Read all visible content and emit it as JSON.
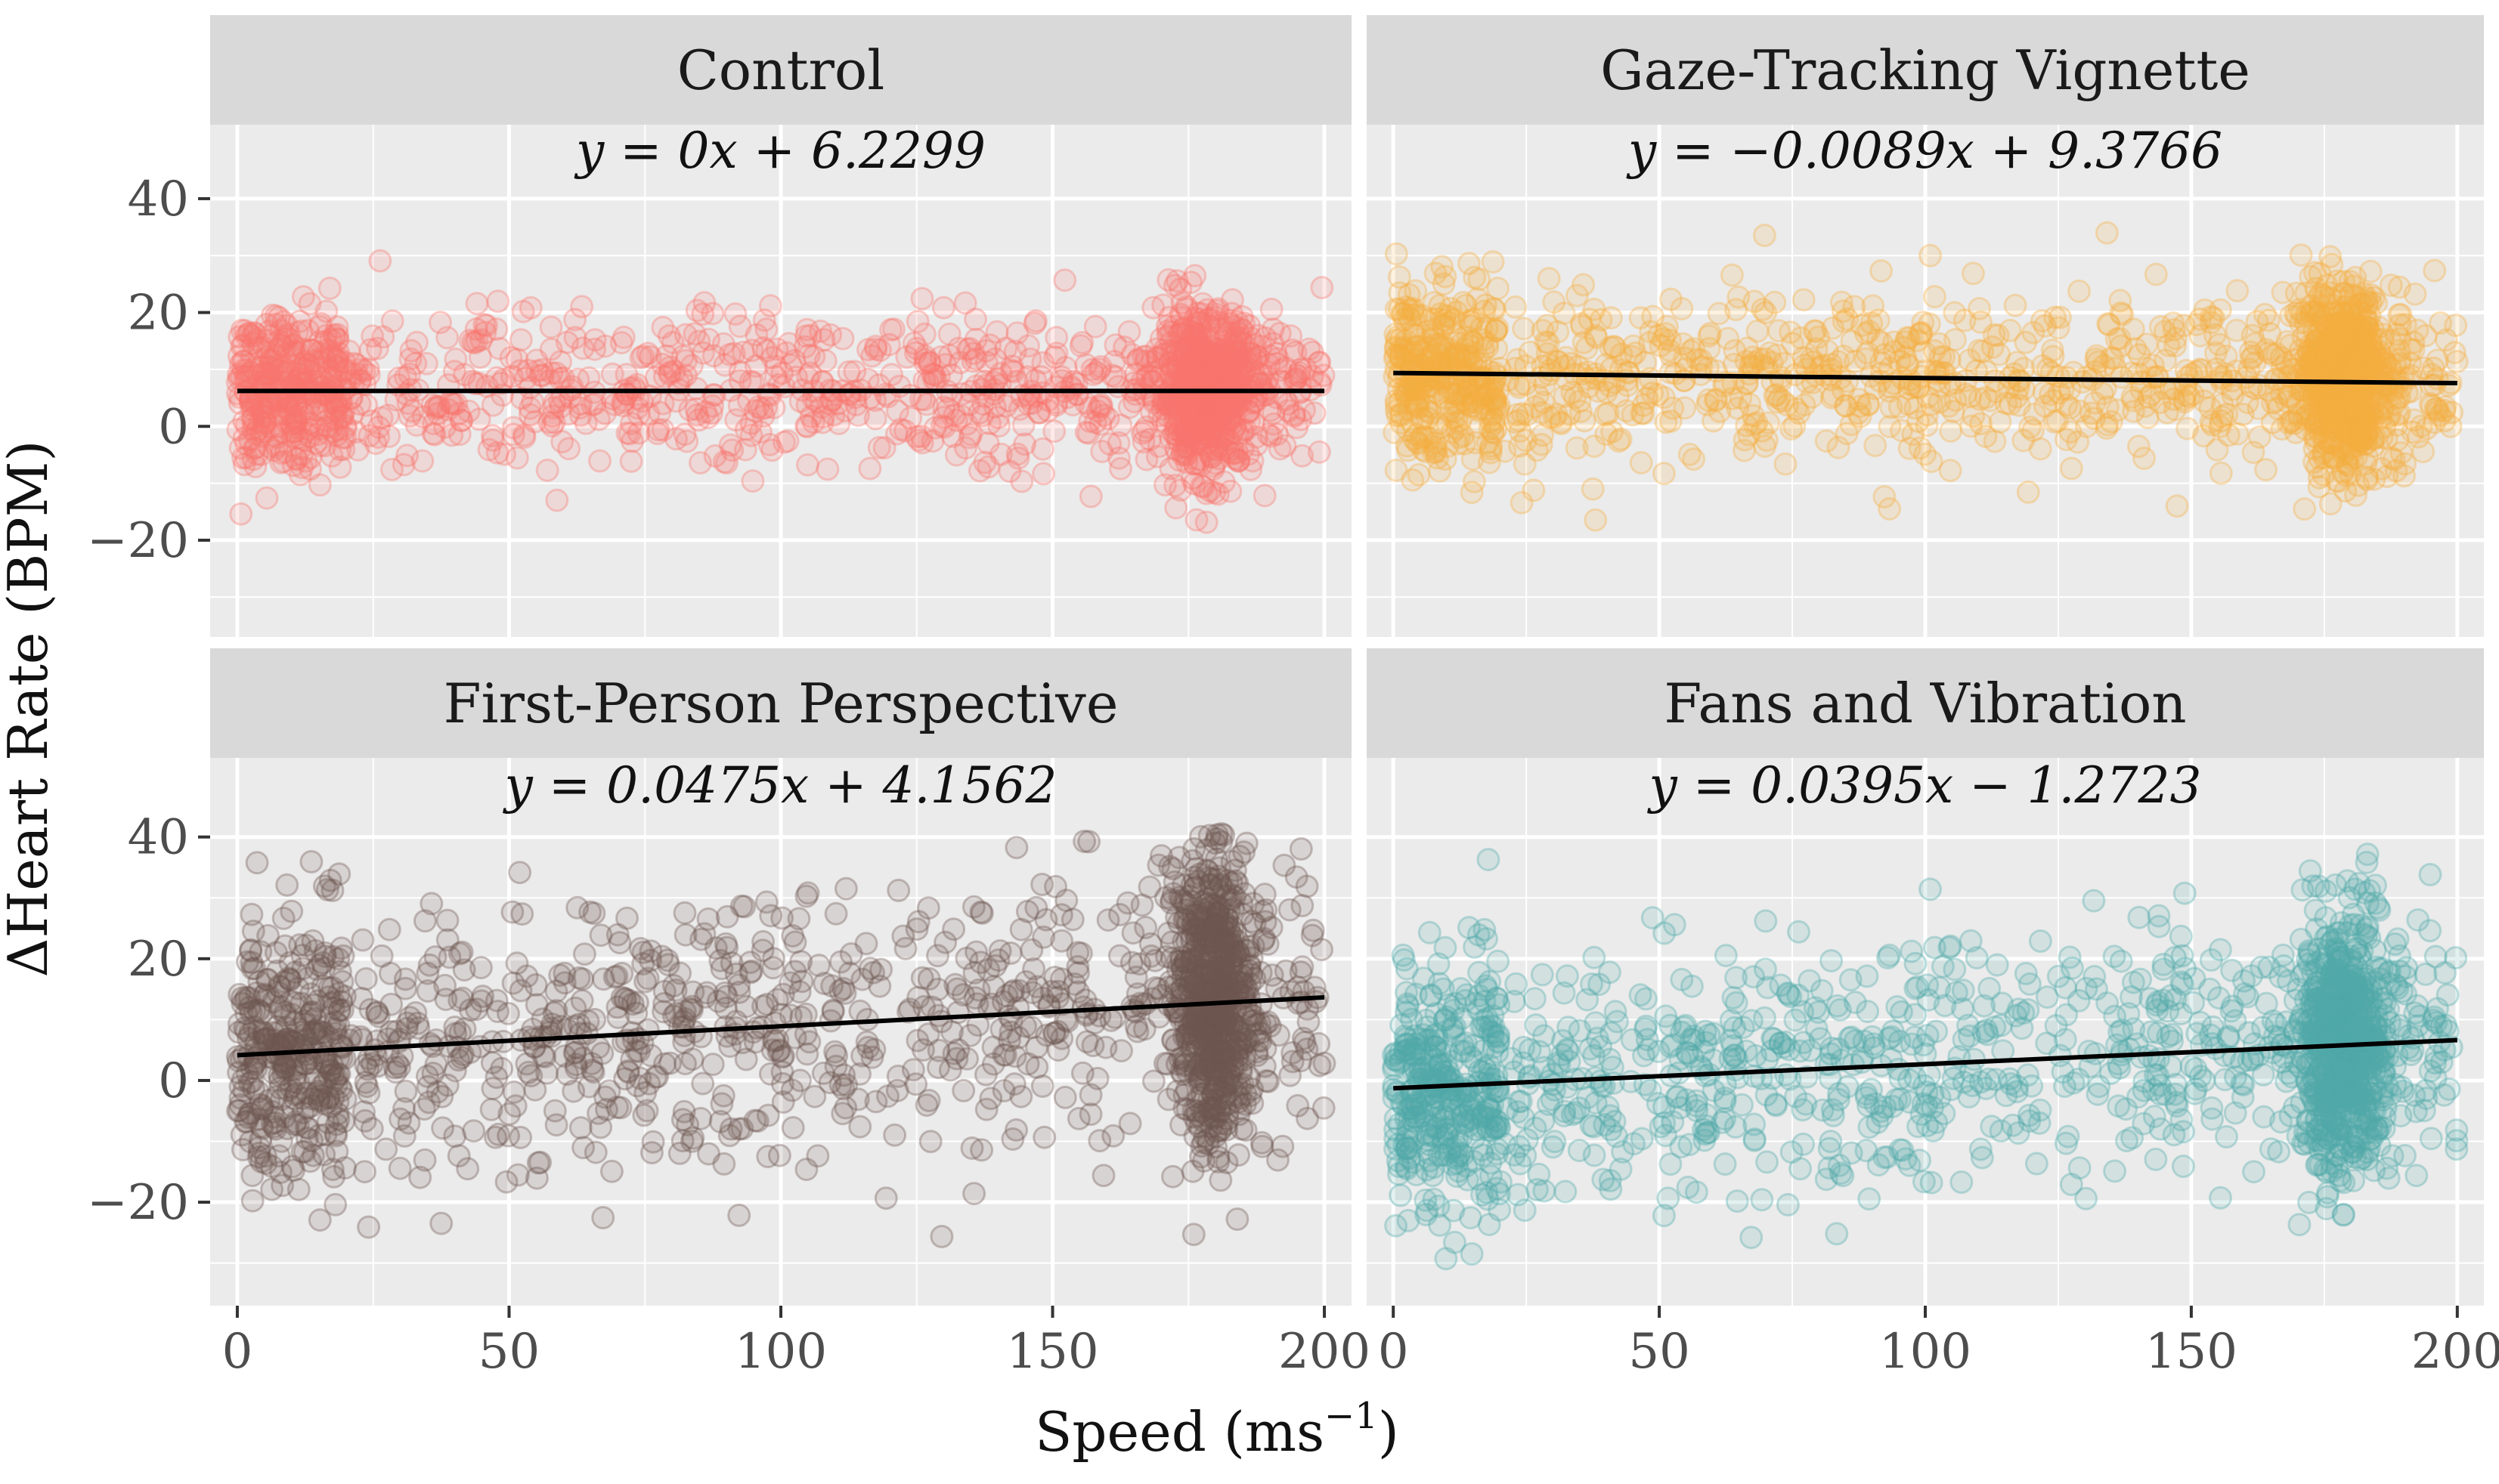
{
  "chart_data": {
    "type": "scatter",
    "title": "",
    "xlabel": "Speed (ms",
    "xlabel_superscript": "−1",
    "xlabel_close": ")",
    "ylabel": "ΔHeart Rate (BPM)",
    "xlim": [
      -5,
      205
    ],
    "ylim": [
      -37,
      53
    ],
    "x_ticks": [
      0,
      50,
      100,
      150,
      200
    ],
    "x_tick_labels": [
      "0",
      "50",
      "100",
      "150",
      "200"
    ],
    "y_ticks": [
      40,
      20,
      0,
      -20
    ],
    "y_tick_labels": [
      "40",
      "20",
      "0",
      "−20"
    ],
    "grid": true,
    "facets": [
      {
        "name": "Control",
        "equation": "y = 0x + 6.2299",
        "slope": 0,
        "intercept": 6.2299,
        "fit_x_range": [
          0,
          200
        ],
        "color": "#F8766D",
        "point_spread": 6.5,
        "dense_region_x": [
          168,
          188
        ],
        "y_min": -18,
        "y_max": 30
      },
      {
        "name": "Gaze-Tracking Vignette",
        "equation": "y = −0.0089x + 9.3766",
        "slope": -0.0089,
        "intercept": 9.3766,
        "fit_x_range": [
          0,
          200
        ],
        "color": "#F5B041",
        "point_spread": 7.5,
        "dense_region_x": [
          170,
          188
        ],
        "y_min": -18,
        "y_max": 34
      },
      {
        "name": "First-Person Perspective",
        "equation": "y = 0.0475x + 4.1562",
        "slope": 0.0475,
        "intercept": 4.1562,
        "fit_x_range": [
          0,
          200
        ],
        "color": "#6D5650",
        "point_spread": 11,
        "dense_region_x": [
          172,
          188
        ],
        "y_min": -26,
        "y_max": 41
      },
      {
        "name": "Fans and Vibration",
        "equation": "y = 0.0395x − 1.2723",
        "slope": 0.0395,
        "intercept": -1.2723,
        "fit_x_range": [
          0,
          200
        ],
        "color": "#4FA8A8",
        "point_spread": 10,
        "dense_region_x": [
          170,
          188
        ],
        "y_min": -30,
        "y_max": 38
      }
    ]
  },
  "colors": {
    "panel_background": "#EBEBEB",
    "strip_background": "#D9D9D9",
    "grid": "#FFFFFF",
    "fit_line": "#000000"
  }
}
